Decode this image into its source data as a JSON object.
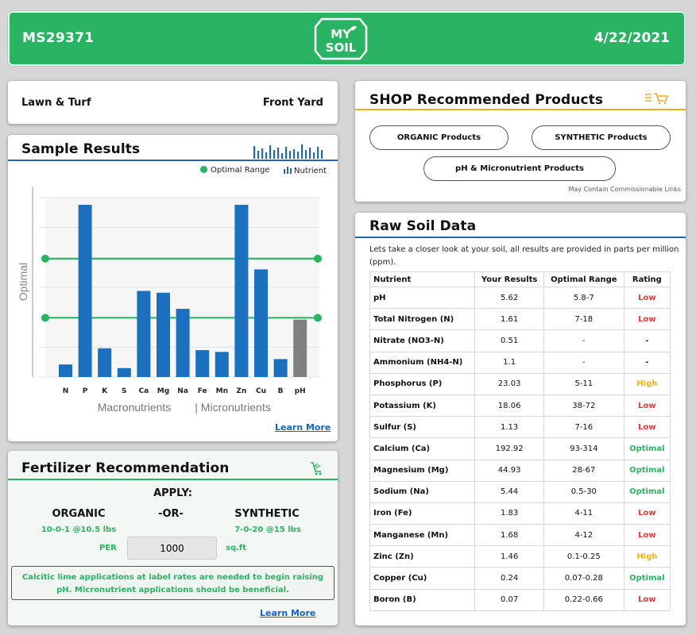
{
  "header": {
    "sample_id": "MS29371",
    "logo_text": "MY SOIL",
    "date": "4/22/2021",
    "color": "#2bb364"
  },
  "lawn": {
    "type": "Lawn & Turf",
    "location": "Front Yard"
  },
  "sample_results": {
    "title": "Sample Results",
    "legend_optimal": "Optimal Range",
    "legend_nutrient": "Nutrient",
    "learn_more": "Learn More",
    "header_icon": "bar-chart-icon"
  },
  "chart_data": {
    "type": "bar",
    "categories": [
      "N",
      "P",
      "K",
      "S",
      "Ca",
      "Mg",
      "Na",
      "Fe",
      "Mn",
      "Zn",
      "Cu",
      "B",
      "pH"
    ],
    "values": [
      0.07,
      0.96,
      0.16,
      0.05,
      0.48,
      0.47,
      0.38,
      0.15,
      0.14,
      0.96,
      0.6,
      0.1,
      0.32
    ],
    "colors": [
      "#1a6fbf",
      "#1a6fbf",
      "#1a6fbf",
      "#1a6fbf",
      "#1a6fbf",
      "#1a6fbf",
      "#1a6fbf",
      "#1a6fbf",
      "#1a6fbf",
      "#1a6fbf",
      "#1a6fbf",
      "#1a6fbf",
      "#808080"
    ],
    "optimal_range": [
      0.33,
      0.66
    ],
    "ylim": [
      0,
      1
    ],
    "ylabel": "Optimal",
    "xgroup_labels": [
      "Macronutrients",
      "| Micronutrients"
    ],
    "grid": true,
    "legend": "top-right"
  },
  "shop": {
    "title": "SHOP Recommended Products",
    "buttons": [
      "ORGANIC Products",
      "SYNTHETIC Products",
      "pH & Micronutrient Products"
    ],
    "disclaimer": "May Contain Commissionable Links",
    "icon": "cart-list-icon"
  },
  "fertilizer": {
    "title": "Fertilizer Recommendation",
    "apply": "APPLY:",
    "organic": "ORGANIC",
    "or": "-OR-",
    "synthetic": "SYNTHETIC",
    "organic_rate": "10-0-1 @10.5 lbs",
    "synthetic_rate": "7-0-20 @15 lbs",
    "per": "PER",
    "area_value": "1000",
    "unit": "sq.ft",
    "note": "Calcitic lime applications at label rates are needed to begin raising pH. Micronutrient applications should be beneficial.",
    "learn_more": "Learn More",
    "icon": "cart-icon"
  },
  "raw": {
    "title": "Raw Soil Data",
    "intro": "Lets take a closer look at your soil, all results are provided in parts per million (ppm).",
    "columns": [
      "Nutrient",
      "Your Results",
      "Optimal Range",
      "Rating"
    ],
    "rows": [
      {
        "nutrient": "pH",
        "result": "5.62",
        "range": "5.8-7",
        "rating": "Low"
      },
      {
        "nutrient": "Total Nitrogen (N)",
        "result": "1.61",
        "range": "7-18",
        "rating": "Low"
      },
      {
        "nutrient": "Nitrate (NO3-N)",
        "result": "0.51",
        "range": "-",
        "rating": "-"
      },
      {
        "nutrient": "Ammonium (NH4-N)",
        "result": "1.1",
        "range": "-",
        "rating": "-"
      },
      {
        "nutrient": "Phosphorus (P)",
        "result": "23.03",
        "range": "5-11",
        "rating": "High"
      },
      {
        "nutrient": "Potassium (K)",
        "result": "18.06",
        "range": "38-72",
        "rating": "Low"
      },
      {
        "nutrient": "Sulfur (S)",
        "result": "1.13",
        "range": "7-16",
        "rating": "Low"
      },
      {
        "nutrient": "Calcium (Ca)",
        "result": "192.92",
        "range": "93-314",
        "rating": "Optimal"
      },
      {
        "nutrient": "Magnesium (Mg)",
        "result": "44.93",
        "range": "28-67",
        "rating": "Optimal"
      },
      {
        "nutrient": "Sodium (Na)",
        "result": "5.44",
        "range": "0.5-30",
        "rating": "Optimal"
      },
      {
        "nutrient": "Iron (Fe)",
        "result": "1.83",
        "range": "4-11",
        "rating": "Low"
      },
      {
        "nutrient": "Manganese (Mn)",
        "result": "1.68",
        "range": "4-12",
        "rating": "Low"
      },
      {
        "nutrient": "Zinc (Zn)",
        "result": "1.46",
        "range": "0.1-0.25",
        "rating": "High"
      },
      {
        "nutrient": "Copper (Cu)",
        "result": "0.24",
        "range": "0.07-0.28",
        "rating": "Optimal"
      },
      {
        "nutrient": "Boron (B)",
        "result": "0.07",
        "range": "0.22-0.66",
        "rating": "Low"
      }
    ],
    "rating_colors": {
      "Low": "#e53935",
      "High": "#f4b400",
      "Optimal": "#2bb364",
      "-": "#222222"
    }
  }
}
